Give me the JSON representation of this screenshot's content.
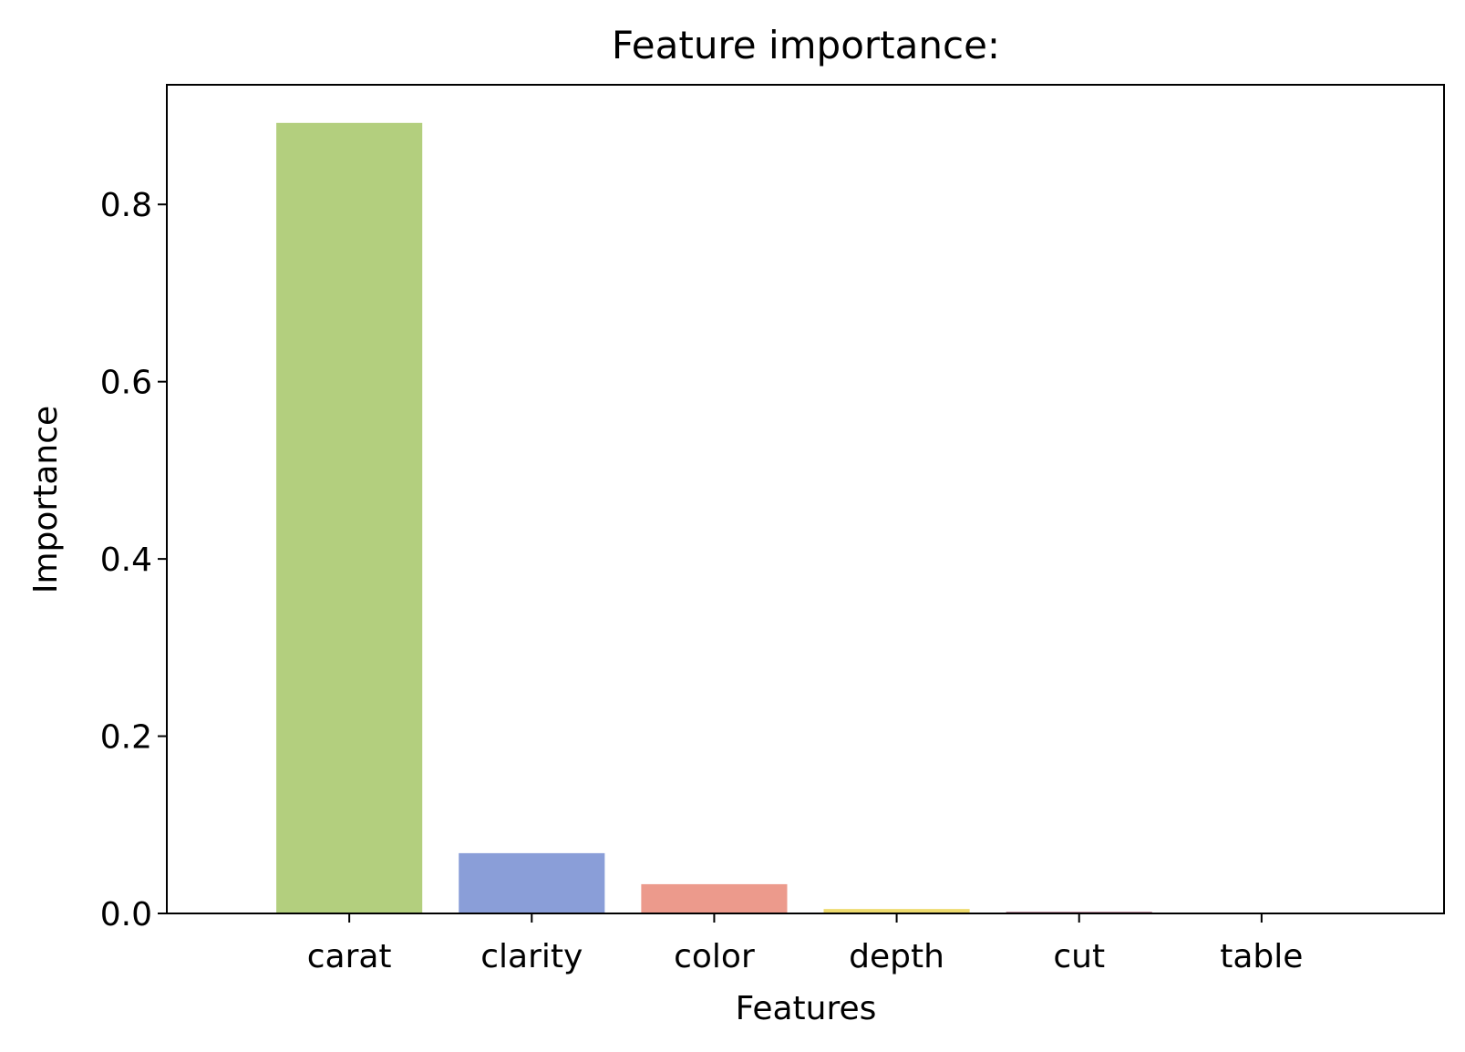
{
  "chart_data": {
    "type": "bar",
    "title": "Feature importance:",
    "xlabel": "Features",
    "ylabel": "Importance",
    "categories": [
      "carat",
      "clarity",
      "color",
      "depth",
      "cut",
      "table"
    ],
    "values": [
      0.892,
      0.068,
      0.033,
      0.005,
      0.002,
      0.001
    ],
    "colors": [
      "#b3cf7e",
      "#8a9ed8",
      "#ec9a8c",
      "#eedb6e",
      "#b07f90",
      "#d9d9d9"
    ],
    "ylim": [
      0,
      0.935
    ],
    "yticks": [
      0.0,
      0.2,
      0.4,
      0.6,
      0.8
    ],
    "ytick_labels": [
      "0.0",
      "0.2",
      "0.4",
      "0.6",
      "0.8"
    ],
    "grid": false,
    "legend": "none"
  }
}
